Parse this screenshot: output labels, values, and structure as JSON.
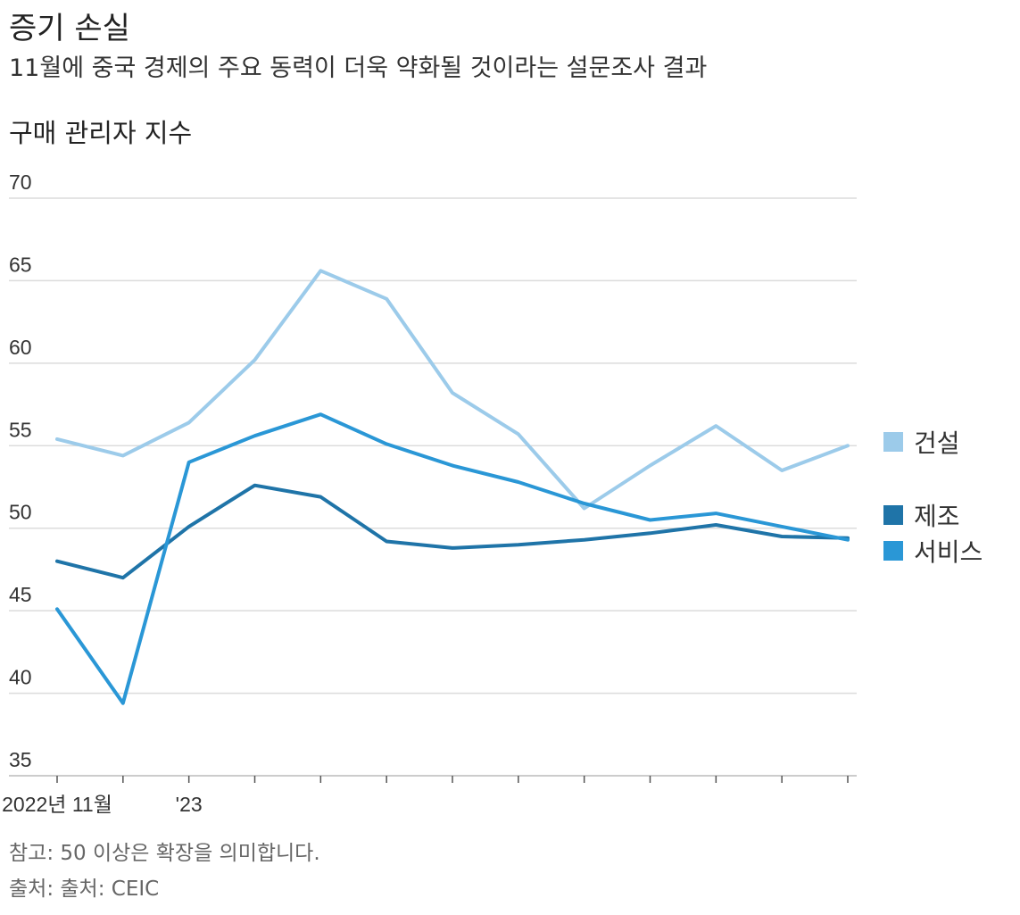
{
  "header": {
    "title": "증기 손실",
    "subtitle": "11월에 중국 경제의 주요 동력이 더욱 약화될 것이라는 설문조사 결과",
    "panel_title": "구매 관리자 지수"
  },
  "footer": {
    "note": "참고: 50 이상은 확장을 의미합니다.",
    "source": "출처: 출처: CEIC"
  },
  "chart_data": {
    "type": "line",
    "title": "구매 관리자 지수",
    "xlabel": "",
    "ylabel": "",
    "ylim": [
      35,
      70
    ],
    "yticks": [
      35,
      40,
      45,
      50,
      55,
      60,
      65,
      70
    ],
    "grid": true,
    "legend_position": "right",
    "categories": [
      "2022-11",
      "2022-12",
      "2023-01",
      "2023-02",
      "2023-03",
      "2023-04",
      "2023-05",
      "2023-06",
      "2023-07",
      "2023-08",
      "2023-09",
      "2023-10",
      "2023-11"
    ],
    "x_tick_labels": [
      "2022년 11월",
      "",
      "'23",
      "",
      "",
      "",
      "",
      "",
      "",
      "",
      "",
      "",
      ""
    ],
    "series": [
      {
        "name": "건설",
        "color": "#9ccbea",
        "values": [
          55.4,
          54.4,
          56.4,
          60.2,
          65.6,
          63.9,
          58.2,
          55.7,
          51.2,
          53.8,
          56.2,
          53.5,
          55.0
        ]
      },
      {
        "name": "제조",
        "color": "#1f74a8",
        "values": [
          48.0,
          47.0,
          50.1,
          52.6,
          51.9,
          49.2,
          48.8,
          49.0,
          49.3,
          49.7,
          50.2,
          49.5,
          49.4
        ]
      },
      {
        "name": "서비스",
        "color": "#2a97d6",
        "values": [
          45.1,
          39.4,
          54.0,
          55.6,
          56.9,
          55.1,
          53.8,
          52.8,
          51.5,
          50.5,
          50.9,
          50.1,
          49.3
        ]
      }
    ]
  }
}
